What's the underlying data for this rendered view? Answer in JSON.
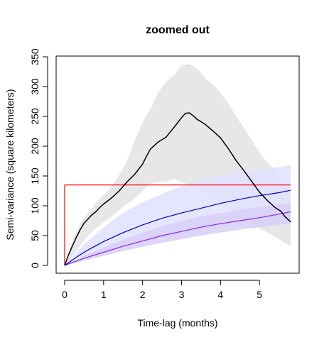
{
  "chart_data": {
    "type": "line",
    "title": "zoomed out",
    "xlabel": "Time-lag (months)",
    "ylabel": "Semi-variance (square kilometers)",
    "xlim": [
      0,
      5.8
    ],
    "ylim": [
      0,
      350
    ],
    "x_ticks": [
      0,
      1,
      2,
      3,
      4,
      5
    ],
    "y_ticks": [
      0,
      50,
      100,
      150,
      200,
      250,
      300,
      350
    ],
    "grid": false,
    "series": [
      {
        "key": "empirical",
        "color": "#000000",
        "x": [
          0,
          0.1,
          0.2,
          0.3,
          0.4,
          0.5,
          0.6,
          0.7,
          0.8,
          0.9,
          1.0,
          1.2,
          1.4,
          1.6,
          1.8,
          2.0,
          2.1,
          2.2,
          2.4,
          2.6,
          2.7,
          2.8,
          3.0,
          3.1,
          3.2,
          3.3,
          3.4,
          3.6,
          3.8,
          4.0,
          4.2,
          4.4,
          4.6,
          4.8,
          5.0,
          5.2,
          5.4,
          5.55,
          5.65,
          5.8
        ],
        "y": [
          0,
          18,
          33,
          47,
          60,
          71,
          78,
          85,
          90,
          97,
          103,
          113,
          125,
          140,
          153,
          170,
          183,
          195,
          207,
          215,
          223,
          231,
          248,
          255,
          256,
          251,
          245,
          237,
          226,
          214,
          196,
          176,
          159,
          141,
          123,
          109,
          97,
          91,
          82,
          73
        ]
      },
      {
        "key": "empirical-ci",
        "color": "#e3e3e3",
        "x": [
          0,
          0.1,
          0.2,
          0.4,
          0.6,
          0.8,
          1.0,
          1.2,
          1.4,
          1.6,
          1.8,
          2.0,
          2.2,
          2.4,
          2.6,
          2.8,
          3.0,
          3.2,
          3.4,
          3.6,
          3.8,
          4.0,
          4.2,
          4.4,
          4.6,
          4.8,
          5.0,
          5.2,
          5.4,
          5.6,
          5.8
        ],
        "y_lower": [
          0,
          5,
          15,
          33,
          50,
          62,
          72,
          82,
          93,
          103,
          113,
          125,
          138,
          140,
          140,
          145,
          140,
          135,
          130,
          120,
          112,
          105,
          96,
          86,
          78,
          70,
          63,
          55,
          48,
          40,
          32
        ],
        "y_upper": [
          0,
          20,
          42,
          70,
          88,
          105,
          118,
          132,
          152,
          175,
          210,
          240,
          263,
          290,
          308,
          318,
          335,
          338,
          330,
          315,
          303,
          290,
          272,
          250,
          231,
          210,
          190,
          172,
          160,
          140,
          115
        ]
      },
      {
        "key": "model-blue",
        "color": "#0000b8",
        "x": [
          0,
          0.2,
          0.4,
          0.6,
          0.8,
          1.0,
          1.5,
          2.0,
          2.5,
          3.0,
          3.5,
          4.0,
          4.5,
          5.0,
          5.5,
          5.8
        ],
        "y": [
          0,
          9,
          18,
          26,
          33,
          40,
          55,
          68,
          79,
          88,
          96,
          104,
          111,
          117,
          122,
          126
        ]
      },
      {
        "key": "model-blue-ci",
        "color": "#e0e0ff",
        "x": [
          0,
          0.5,
          1.0,
          1.5,
          2.0,
          2.5,
          3.0,
          3.5,
          4.0,
          4.5,
          5.0,
          5.5,
          5.8
        ],
        "y_lower": [
          0,
          10,
          20,
          30,
          38,
          46,
          53,
          60,
          66,
          72,
          77,
          82,
          85
        ],
        "y_upper": [
          0,
          35,
          64,
          88,
          106,
          120,
          133,
          143,
          150,
          157,
          161,
          165,
          168
        ]
      },
      {
        "key": "model-purple",
        "color": "#8a2be2",
        "x": [
          0,
          0.5,
          1.0,
          1.5,
          2.0,
          2.5,
          3.0,
          3.5,
          4.0,
          4.5,
          5.0,
          5.5,
          5.8
        ],
        "y": [
          0,
          12,
          22,
          32,
          41,
          50,
          57,
          64,
          70,
          75,
          80,
          86,
          90
        ]
      },
      {
        "key": "model-purple-ci",
        "color": "#d8cff8",
        "x": [
          0,
          0.5,
          1.0,
          1.5,
          2.0,
          2.5,
          3.0,
          3.5,
          4.0,
          4.5,
          5.0,
          5.5,
          5.8
        ],
        "y_lower": [
          0,
          8,
          16,
          24,
          31,
          38,
          44,
          50,
          55,
          60,
          64,
          68,
          70
        ],
        "y_upper": [
          0,
          16,
          30,
          43,
          55,
          66,
          74,
          82,
          88,
          93,
          98,
          102,
          105
        ]
      },
      {
        "key": "model-red",
        "color": "#ff0000",
        "x": [
          0,
          0,
          5.8
        ],
        "y": [
          0,
          135,
          135
        ]
      }
    ]
  }
}
